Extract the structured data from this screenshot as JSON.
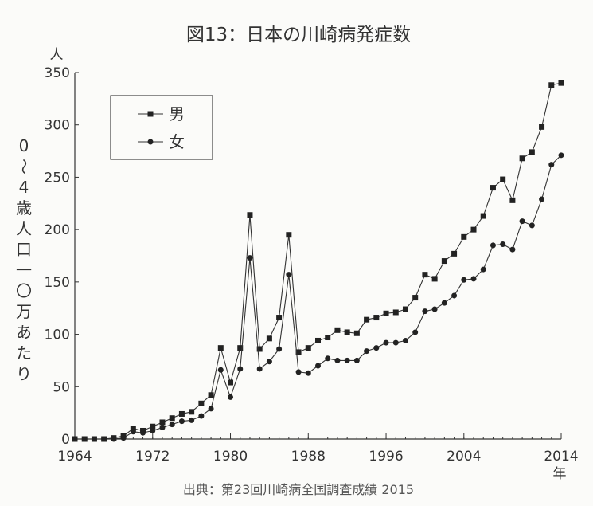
{
  "chart_data": {
    "type": "line",
    "title": "図13：日本の川崎病発症数",
    "ylabel": "0〜4歳人口一〇万あたり",
    "y_unit": "人",
    "x_unit": "年",
    "source": "出典：第23回川崎病全国調査成績 2015",
    "ylim": [
      0,
      350
    ],
    "xlim": [
      1964,
      2014
    ],
    "yticks": [
      0,
      50,
      100,
      150,
      200,
      250,
      300,
      350
    ],
    "xticks": [
      1964,
      1972,
      1980,
      1988,
      1996,
      2004,
      2014
    ],
    "grid": false,
    "legend_position": "top-left",
    "x": [
      1964,
      1965,
      1966,
      1967,
      1968,
      1969,
      1970,
      1971,
      1972,
      1973,
      1974,
      1975,
      1976,
      1977,
      1978,
      1979,
      1980,
      1981,
      1982,
      1983,
      1984,
      1985,
      1986,
      1987,
      1988,
      1989,
      1990,
      1991,
      1992,
      1993,
      1994,
      1995,
      1996,
      1997,
      1998,
      1999,
      2000,
      2001,
      2002,
      2003,
      2004,
      2005,
      2006,
      2007,
      2008,
      2009,
      2010,
      2011,
      2012,
      2013,
      2014
    ],
    "series": [
      {
        "name": "男",
        "marker": "square",
        "values": [
          0,
          0,
          0,
          0,
          1,
          3,
          10,
          8,
          12,
          16,
          20,
          24,
          26,
          34,
          42,
          87,
          54,
          87,
          214,
          86,
          96,
          116,
          195,
          83,
          87,
          94,
          97,
          104,
          102,
          101,
          114,
          116,
          120,
          121,
          124,
          135,
          157,
          153,
          170,
          177,
          193,
          200,
          213,
          240,
          248,
          228,
          268,
          274,
          298,
          338,
          340
        ]
      },
      {
        "name": "女",
        "marker": "circle",
        "values": [
          0,
          0,
          0,
          0,
          0,
          1,
          7,
          6,
          8,
          11,
          14,
          17,
          18,
          22,
          29,
          66,
          40,
          67,
          173,
          67,
          74,
          86,
          157,
          64,
          63,
          70,
          77,
          75,
          75,
          75,
          84,
          87,
          92,
          92,
          94,
          102,
          122,
          124,
          130,
          137,
          152,
          153,
          162,
          185,
          186,
          181,
          208,
          204,
          229,
          262,
          271
        ]
      }
    ]
  }
}
